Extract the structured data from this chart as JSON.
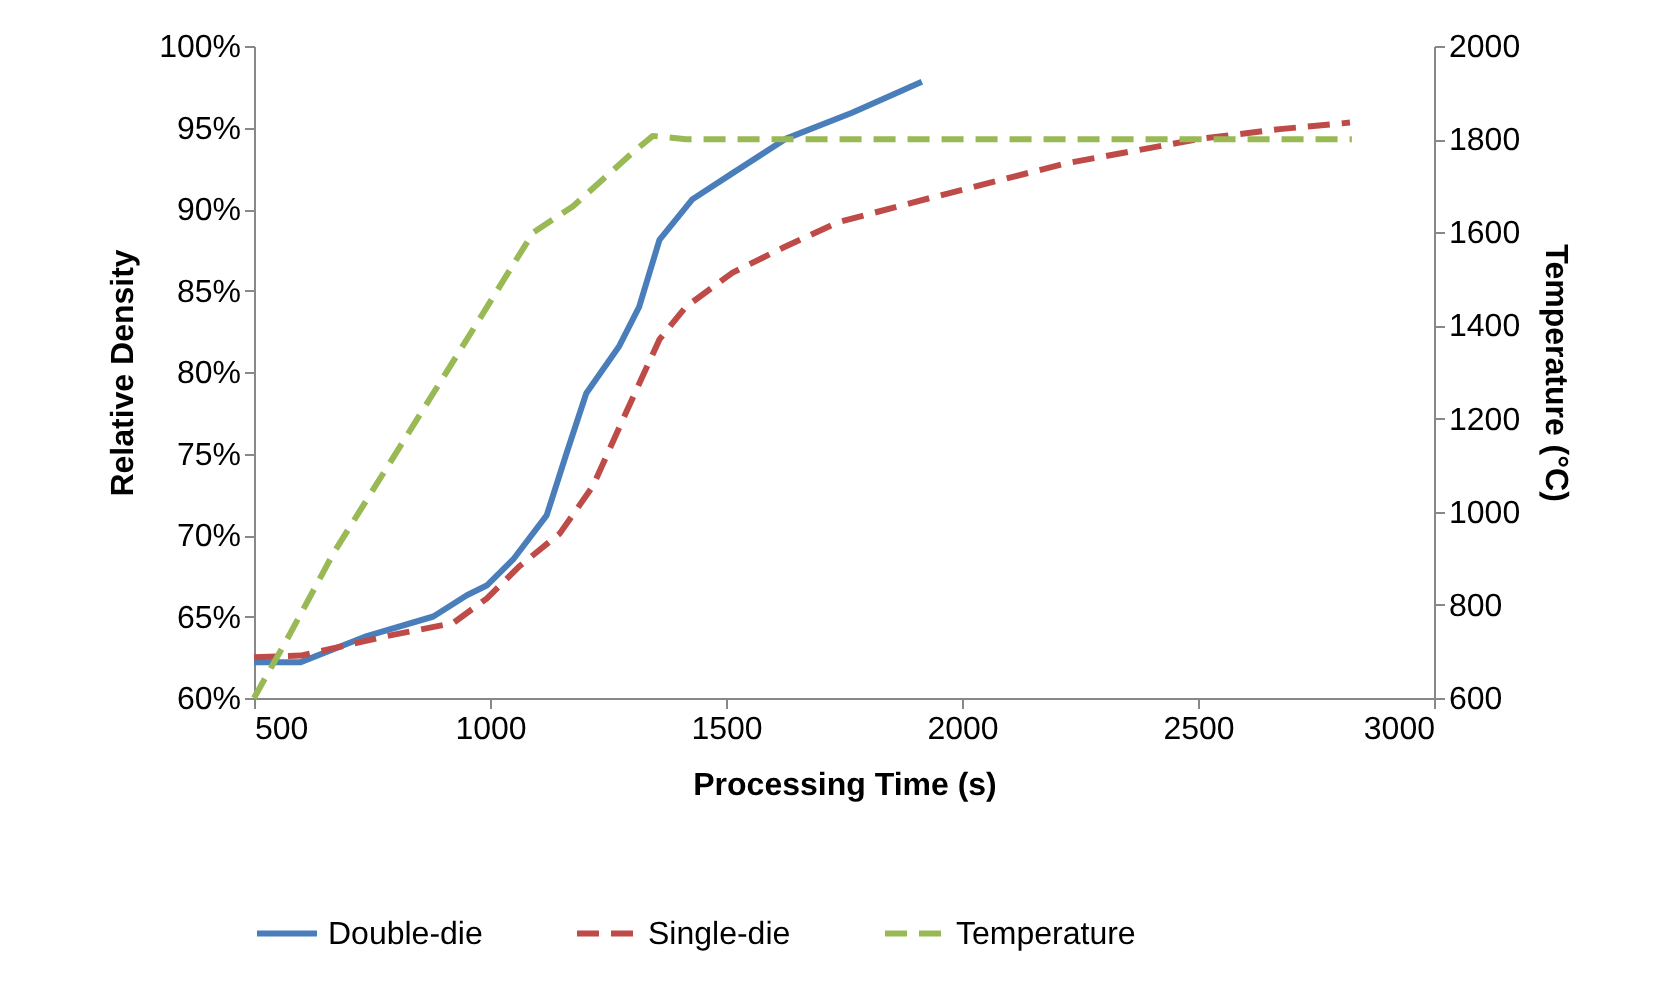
{
  "chart_data": {
    "type": "line",
    "xlabel": "Processing Time (s)",
    "ylabel": "Relative Density",
    "y2label": "Temperature (°C)",
    "xlim": [
      500,
      3000
    ],
    "xticks": [
      500,
      1000,
      1500,
      2000,
      2500,
      3000
    ],
    "ylim": [
      60,
      100
    ],
    "yticks": [
      {
        "value": 60,
        "label": "60%"
      },
      {
        "value": 65,
        "label": "65%"
      },
      {
        "value": 70,
        "label": "70%"
      },
      {
        "value": 75,
        "label": "75%"
      },
      {
        "value": 80,
        "label": "80%"
      },
      {
        "value": 85,
        "label": "85%"
      },
      {
        "value": 90,
        "label": "90%"
      },
      {
        "value": 95,
        "label": "95%"
      },
      {
        "value": 100,
        "label": "100%"
      }
    ],
    "y2lim": [
      600,
      2000
    ],
    "y2ticks": [
      600,
      800,
      1000,
      1200,
      1400,
      1600,
      1800,
      2000
    ],
    "legend": "bottom",
    "grid": false,
    "series": [
      {
        "name": "Double-die",
        "color": "#4a7ebb",
        "line_style": "solid",
        "x": [
          500,
          599,
          739,
          880,
          951,
          993,
          1049,
          1120,
          1162,
          1204,
          1274,
          1316,
          1359,
          1429,
          1514,
          1626,
          1767,
          1915
        ],
        "values": [
          62.2,
          62.2,
          63.8,
          65.0,
          66.3,
          66.9,
          68.5,
          71.2,
          75.0,
          78.7,
          81.6,
          84.0,
          88.1,
          90.6,
          92.2,
          94.3,
          95.9,
          97.8
        ]
      },
      {
        "name": "Single-die",
        "color": "#be4b48",
        "line_style": "dashed",
        "x": [
          500,
          599,
          782,
          922,
          993,
          1063,
          1148,
          1218,
          1288,
          1359,
          1415,
          1514,
          1626,
          1739,
          1936,
          2220,
          2503,
          2673,
          2822
        ],
        "values": [
          62.5,
          62.6,
          63.8,
          64.6,
          66.1,
          68.1,
          70.1,
          73.0,
          77.5,
          82.0,
          84.0,
          86.1,
          87.7,
          89.2,
          90.7,
          92.8,
          94.3,
          94.9,
          95.3
        ]
      },
      {
        "name": "Temperature",
        "color": "#98b954",
        "line_style": "dashed",
        "axis": "y2",
        "x": [
          500,
          570,
          669,
          810,
          951,
          1091,
          1176,
          1302,
          1345,
          1415,
          2826
        ],
        "values": [
          600,
          726,
          912,
          1141,
          1370,
          1599,
          1656,
          1771,
          1807,
          1800,
          1800
        ]
      }
    ]
  }
}
